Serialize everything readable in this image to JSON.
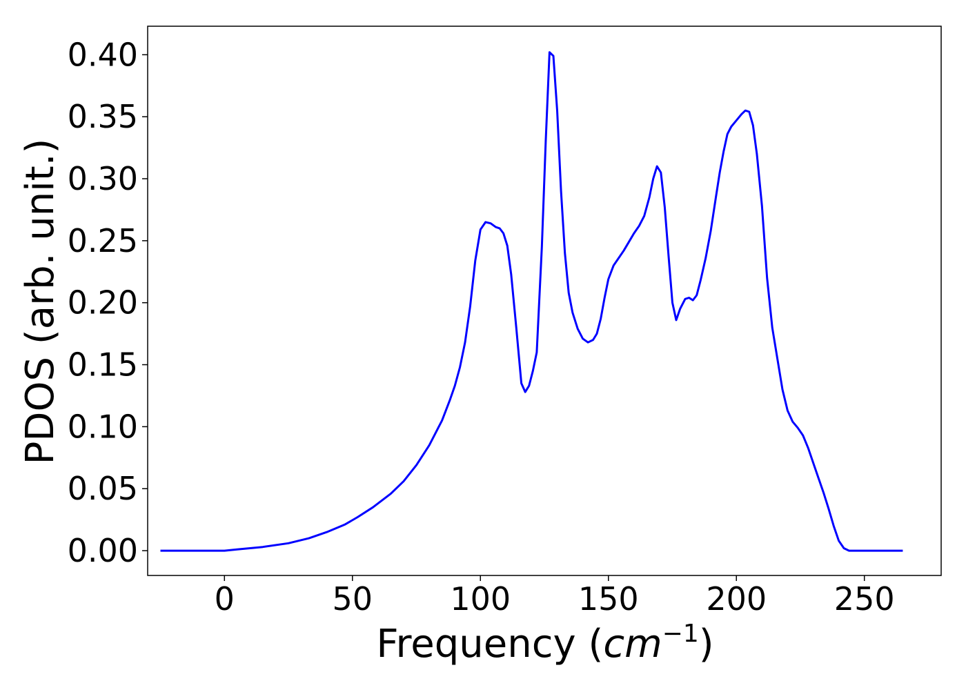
{
  "chart_data": {
    "type": "line",
    "title": "",
    "xlabel_main": "Frequency (",
    "xlabel_unit": "cm",
    "xlabel_exp": "−1",
    "xlabel_close": ")",
    "ylabel": "PDOS (arb. unit.)",
    "xlim": [
      -30,
      280
    ],
    "ylim": [
      -0.02,
      0.423
    ],
    "xticks": [
      0,
      50,
      100,
      150,
      200,
      250
    ],
    "xtick_labels": [
      "0",
      "50",
      "100",
      "150",
      "200",
      "250"
    ],
    "yticks": [
      0.0,
      0.05,
      0.1,
      0.15,
      0.2,
      0.25,
      0.3,
      0.35,
      0.4
    ],
    "ytick_labels": [
      "0.00",
      "0.05",
      "0.10",
      "0.15",
      "0.20",
      "0.25",
      "0.30",
      "0.35",
      "0.40"
    ],
    "grid": false,
    "legend": "none",
    "series": [
      {
        "color": "#0000ff",
        "x": [
          -25,
          -10,
          0,
          5,
          15,
          25,
          33,
          40,
          47,
          52,
          58,
          65,
          70,
          75,
          80,
          85,
          88,
          90,
          92,
          94,
          96,
          98,
          100,
          102,
          104,
          106,
          107.5,
          109,
          110.5,
          112,
          114,
          116,
          117.5,
          119,
          120.5,
          122,
          124,
          125.5,
          127,
          128.5,
          130,
          131.5,
          133,
          134.5,
          136,
          138,
          140,
          142,
          144,
          145.5,
          147,
          148.5,
          150,
          152,
          154,
          156,
          158,
          160,
          162,
          164,
          166,
          167.5,
          169,
          170.5,
          172,
          173.5,
          175,
          176.5,
          178,
          180,
          181.5,
          183,
          184.5,
          186,
          188,
          190,
          192,
          193.5,
          195,
          196.5,
          198,
          200,
          202,
          203.5,
          205,
          206.5,
          208,
          210,
          212,
          214,
          216,
          218,
          220,
          222,
          224,
          226,
          228,
          230,
          232,
          234,
          236,
          238,
          240,
          242,
          244,
          246,
          248,
          252,
          265
        ],
        "y": [
          0.0,
          0.0,
          0.0,
          0.001,
          0.003,
          0.006,
          0.01,
          0.015,
          0.021,
          0.027,
          0.035,
          0.046,
          0.056,
          0.069,
          0.085,
          0.105,
          0.121,
          0.133,
          0.148,
          0.168,
          0.197,
          0.234,
          0.259,
          0.265,
          0.264,
          0.261,
          0.26,
          0.256,
          0.246,
          0.223,
          0.18,
          0.135,
          0.128,
          0.133,
          0.145,
          0.16,
          0.245,
          0.33,
          0.402,
          0.399,
          0.355,
          0.29,
          0.24,
          0.208,
          0.192,
          0.179,
          0.171,
          0.168,
          0.17,
          0.175,
          0.187,
          0.204,
          0.219,
          0.23,
          0.236,
          0.242,
          0.249,
          0.256,
          0.262,
          0.27,
          0.285,
          0.3,
          0.31,
          0.305,
          0.277,
          0.238,
          0.2,
          0.186,
          0.195,
          0.203,
          0.204,
          0.202,
          0.206,
          0.218,
          0.236,
          0.258,
          0.285,
          0.305,
          0.322,
          0.336,
          0.342,
          0.347,
          0.352,
          0.355,
          0.354,
          0.343,
          0.32,
          0.278,
          0.22,
          0.18,
          0.155,
          0.13,
          0.113,
          0.104,
          0.099,
          0.093,
          0.083,
          0.071,
          0.059,
          0.047,
          0.034,
          0.02,
          0.008,
          0.002,
          0.0,
          0.0,
          0.0,
          0.0,
          0.0
        ]
      }
    ]
  }
}
